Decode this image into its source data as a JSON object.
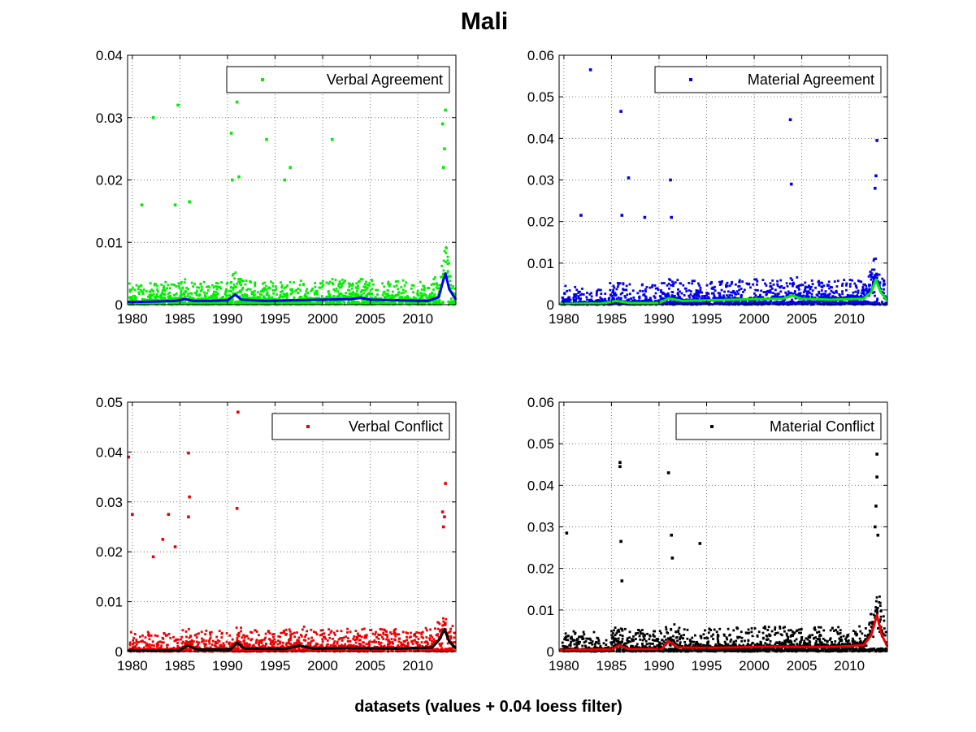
{
  "figure": {
    "title": "Mali",
    "xlabel": "datasets (values + 0.04 loess filter)"
  },
  "chart_data": [
    {
      "type": "scatter",
      "legend": "Verbal Agreement",
      "legend_placement": "top-right",
      "grid": true,
      "xlim": [
        1979.5,
        2014.0
      ],
      "ylim": [
        0,
        0.04
      ],
      "xticks": [
        1980,
        1985,
        1990,
        1995,
        2000,
        2005,
        2010
      ],
      "yticks": [
        0,
        0.01,
        0.02,
        0.03,
        0.04
      ],
      "xtick_labels": [
        "1980",
        "1985",
        "1990",
        "1995",
        "2000",
        "2005",
        "2010"
      ],
      "ytick_labels": [
        "0",
        "0.01",
        "0.02",
        "0.03",
        "0.04"
      ],
      "point_color": "#00ee00",
      "smooth_color": "#0000ee",
      "outliers": [
        [
          1982.2,
          0.03
        ],
        [
          1984.8,
          0.032
        ],
        [
          1990.4,
          0.0275
        ],
        [
          1991.0,
          0.0325
        ],
        [
          1991.2,
          0.0205
        ],
        [
          1994.1,
          0.0265
        ],
        [
          1996.6,
          0.022
        ],
        [
          2001.0,
          0.0265
        ],
        [
          1990.5,
          0.02
        ],
        [
          1996.0,
          0.02
        ],
        [
          1986.0,
          0.0165
        ],
        [
          1981.0,
          0.016
        ],
        [
          1984.5,
          0.016
        ],
        [
          2012.9,
          0.0312
        ],
        [
          2012.6,
          0.029
        ],
        [
          2012.8,
          0.025
        ],
        [
          2012.7,
          0.022
        ]
      ],
      "smooth": [
        [
          1979.5,
          0.0004
        ],
        [
          1982,
          0.0005
        ],
        [
          1984.5,
          0.0006
        ],
        [
          1985.5,
          0.0009
        ],
        [
          1986.5,
          0.0006
        ],
        [
          1988,
          0.0006
        ],
        [
          1990,
          0.0007
        ],
        [
          1990.8,
          0.0016
        ],
        [
          1991.5,
          0.0008
        ],
        [
          1994,
          0.0006
        ],
        [
          1997,
          0.0007
        ],
        [
          2000,
          0.0008
        ],
        [
          2003,
          0.0009
        ],
        [
          2004,
          0.0011
        ],
        [
          2005,
          0.0008
        ],
        [
          2008,
          0.0007
        ],
        [
          2011,
          0.0006
        ],
        [
          2012.2,
          0.0012
        ],
        [
          2012.6,
          0.0035
        ],
        [
          2012.9,
          0.005
        ],
        [
          2013.3,
          0.0025
        ],
        [
          2014,
          0.0008
        ]
      ]
    },
    {
      "type": "scatter",
      "legend": "Material Agreement",
      "legend_placement": "top-right",
      "grid": true,
      "xlim": [
        1979.5,
        2014.0
      ],
      "ylim": [
        0,
        0.06
      ],
      "xticks": [
        1980,
        1985,
        1990,
        1995,
        2000,
        2005,
        2010
      ],
      "yticks": [
        0,
        0.01,
        0.02,
        0.03,
        0.04,
        0.05,
        0.06
      ],
      "xtick_labels": [
        "1980",
        "1985",
        "1990",
        "1995",
        "2000",
        "2005",
        "2010"
      ],
      "ytick_labels": [
        "0",
        "0.01",
        "0.02",
        "0.03",
        "0.04",
        "0.05",
        "0.06"
      ],
      "point_color": "#0000ee",
      "smooth_color": "#00ee00",
      "outliers": [
        [
          1982.8,
          0.0565
        ],
        [
          1986.0,
          0.0465
        ],
        [
          1986.8,
          0.0305
        ],
        [
          1991.2,
          0.03
        ],
        [
          2003.8,
          0.0445
        ],
        [
          2003.9,
          0.029
        ],
        [
          1981.8,
          0.0215
        ],
        [
          1986.1,
          0.0215
        ],
        [
          1988.5,
          0.021
        ],
        [
          1991.3,
          0.021
        ],
        [
          2012.9,
          0.0395
        ],
        [
          2012.8,
          0.031
        ],
        [
          2012.7,
          0.028
        ]
      ],
      "smooth": [
        [
          1979.5,
          0.0002
        ],
        [
          1984,
          0.0003
        ],
        [
          1985.5,
          0.0009
        ],
        [
          1987,
          0.0004
        ],
        [
          1990,
          0.0004
        ],
        [
          1991,
          0.0015
        ],
        [
          1992.5,
          0.0009
        ],
        [
          1996,
          0.0011
        ],
        [
          2000,
          0.0013
        ],
        [
          2003,
          0.0014
        ],
        [
          2004,
          0.0022
        ],
        [
          2005,
          0.0014
        ],
        [
          2008,
          0.0012
        ],
        [
          2011.5,
          0.0014
        ],
        [
          2012.3,
          0.003
        ],
        [
          2012.8,
          0.006
        ],
        [
          2013.3,
          0.003
        ],
        [
          2014,
          0.001
        ]
      ]
    },
    {
      "type": "scatter",
      "legend": "Verbal Conflict",
      "legend_placement": "top-right",
      "grid": true,
      "xlim": [
        1979.5,
        2014.0
      ],
      "ylim": [
        0,
        0.05
      ],
      "xticks": [
        1980,
        1985,
        1990,
        1995,
        2000,
        2005,
        2010
      ],
      "yticks": [
        0,
        0.01,
        0.02,
        0.03,
        0.04,
        0.05
      ],
      "xtick_labels": [
        "1980",
        "1985",
        "1990",
        "1995",
        "2000",
        "2005",
        "2010"
      ],
      "ytick_labels": [
        "0",
        "0.01",
        "0.02",
        "0.03",
        "0.04",
        "0.05"
      ],
      "point_color": "#ee0000",
      "smooth_color": "#000000",
      "outliers": [
        [
          1979.6,
          0.039
        ],
        [
          1980.0,
          0.0275
        ],
        [
          1985.9,
          0.0398
        ],
        [
          1986.0,
          0.031
        ],
        [
          1991.1,
          0.048
        ],
        [
          1991.0,
          0.0287
        ],
        [
          1983.8,
          0.0275
        ],
        [
          1985.9,
          0.027
        ],
        [
          1983.2,
          0.0225
        ],
        [
          1984.5,
          0.021
        ],
        [
          1982.2,
          0.019
        ],
        [
          2012.9,
          0.0337
        ],
        [
          2012.6,
          0.028
        ],
        [
          2012.8,
          0.027
        ],
        [
          2012.7,
          0.025
        ]
      ],
      "smooth": [
        [
          1979.5,
          0.0002
        ],
        [
          1985,
          0.0003
        ],
        [
          1985.8,
          0.0012
        ],
        [
          1986.8,
          0.0004
        ],
        [
          1990.3,
          0.0004
        ],
        [
          1991,
          0.0018
        ],
        [
          1991.8,
          0.0006
        ],
        [
          1996,
          0.0005
        ],
        [
          1997.5,
          0.0012
        ],
        [
          1999,
          0.0006
        ],
        [
          2003,
          0.0007
        ],
        [
          2008,
          0.0006
        ],
        [
          2011.5,
          0.0008
        ],
        [
          2012.3,
          0.0025
        ],
        [
          2012.8,
          0.0045
        ],
        [
          2013.3,
          0.002
        ],
        [
          2014,
          0.0006
        ]
      ]
    },
    {
      "type": "scatter",
      "legend": "Material Conflict",
      "legend_placement": "top-right",
      "grid": true,
      "xlim": [
        1979.5,
        2014.0
      ],
      "ylim": [
        0,
        0.06
      ],
      "xticks": [
        1980,
        1985,
        1990,
        1995,
        2000,
        2005,
        2010
      ],
      "yticks": [
        0,
        0.01,
        0.02,
        0.03,
        0.04,
        0.05,
        0.06
      ],
      "xtick_labels": [
        "1980",
        "1985",
        "1990",
        "1995",
        "2000",
        "2005",
        "2010"
      ],
      "ytick_labels": [
        "0",
        "0.01",
        "0.02",
        "0.03",
        "0.04",
        "0.05",
        "0.06"
      ],
      "point_color": "#000000",
      "smooth_color": "#ee0000",
      "outliers": [
        [
          1980.3,
          0.0285
        ],
        [
          1985.9,
          0.0455
        ],
        [
          1985.9,
          0.0445
        ],
        [
          1986.0,
          0.0265
        ],
        [
          1991.0,
          0.043
        ],
        [
          1991.3,
          0.028
        ],
        [
          1994.3,
          0.026
        ],
        [
          1991.4,
          0.0225
        ],
        [
          1986.1,
          0.017
        ],
        [
          2012.9,
          0.0475
        ],
        [
          2012.9,
          0.042
        ],
        [
          2012.8,
          0.035
        ],
        [
          2012.7,
          0.03
        ],
        [
          2013.0,
          0.028
        ]
      ],
      "smooth": [
        [
          1979.5,
          0.0004
        ],
        [
          1985,
          0.0005
        ],
        [
          1985.8,
          0.0015
        ],
        [
          1986.8,
          0.0006
        ],
        [
          1990.3,
          0.0006
        ],
        [
          1991,
          0.0025
        ],
        [
          1992,
          0.001
        ],
        [
          1995,
          0.0009
        ],
        [
          1998,
          0.001
        ],
        [
          2002,
          0.0012
        ],
        [
          2006,
          0.0011
        ],
        [
          2009,
          0.0012
        ],
        [
          2011.5,
          0.0015
        ],
        [
          2012.3,
          0.004
        ],
        [
          2012.9,
          0.0088
        ],
        [
          2013.4,
          0.004
        ],
        [
          2014,
          0.0012
        ]
      ]
    }
  ]
}
